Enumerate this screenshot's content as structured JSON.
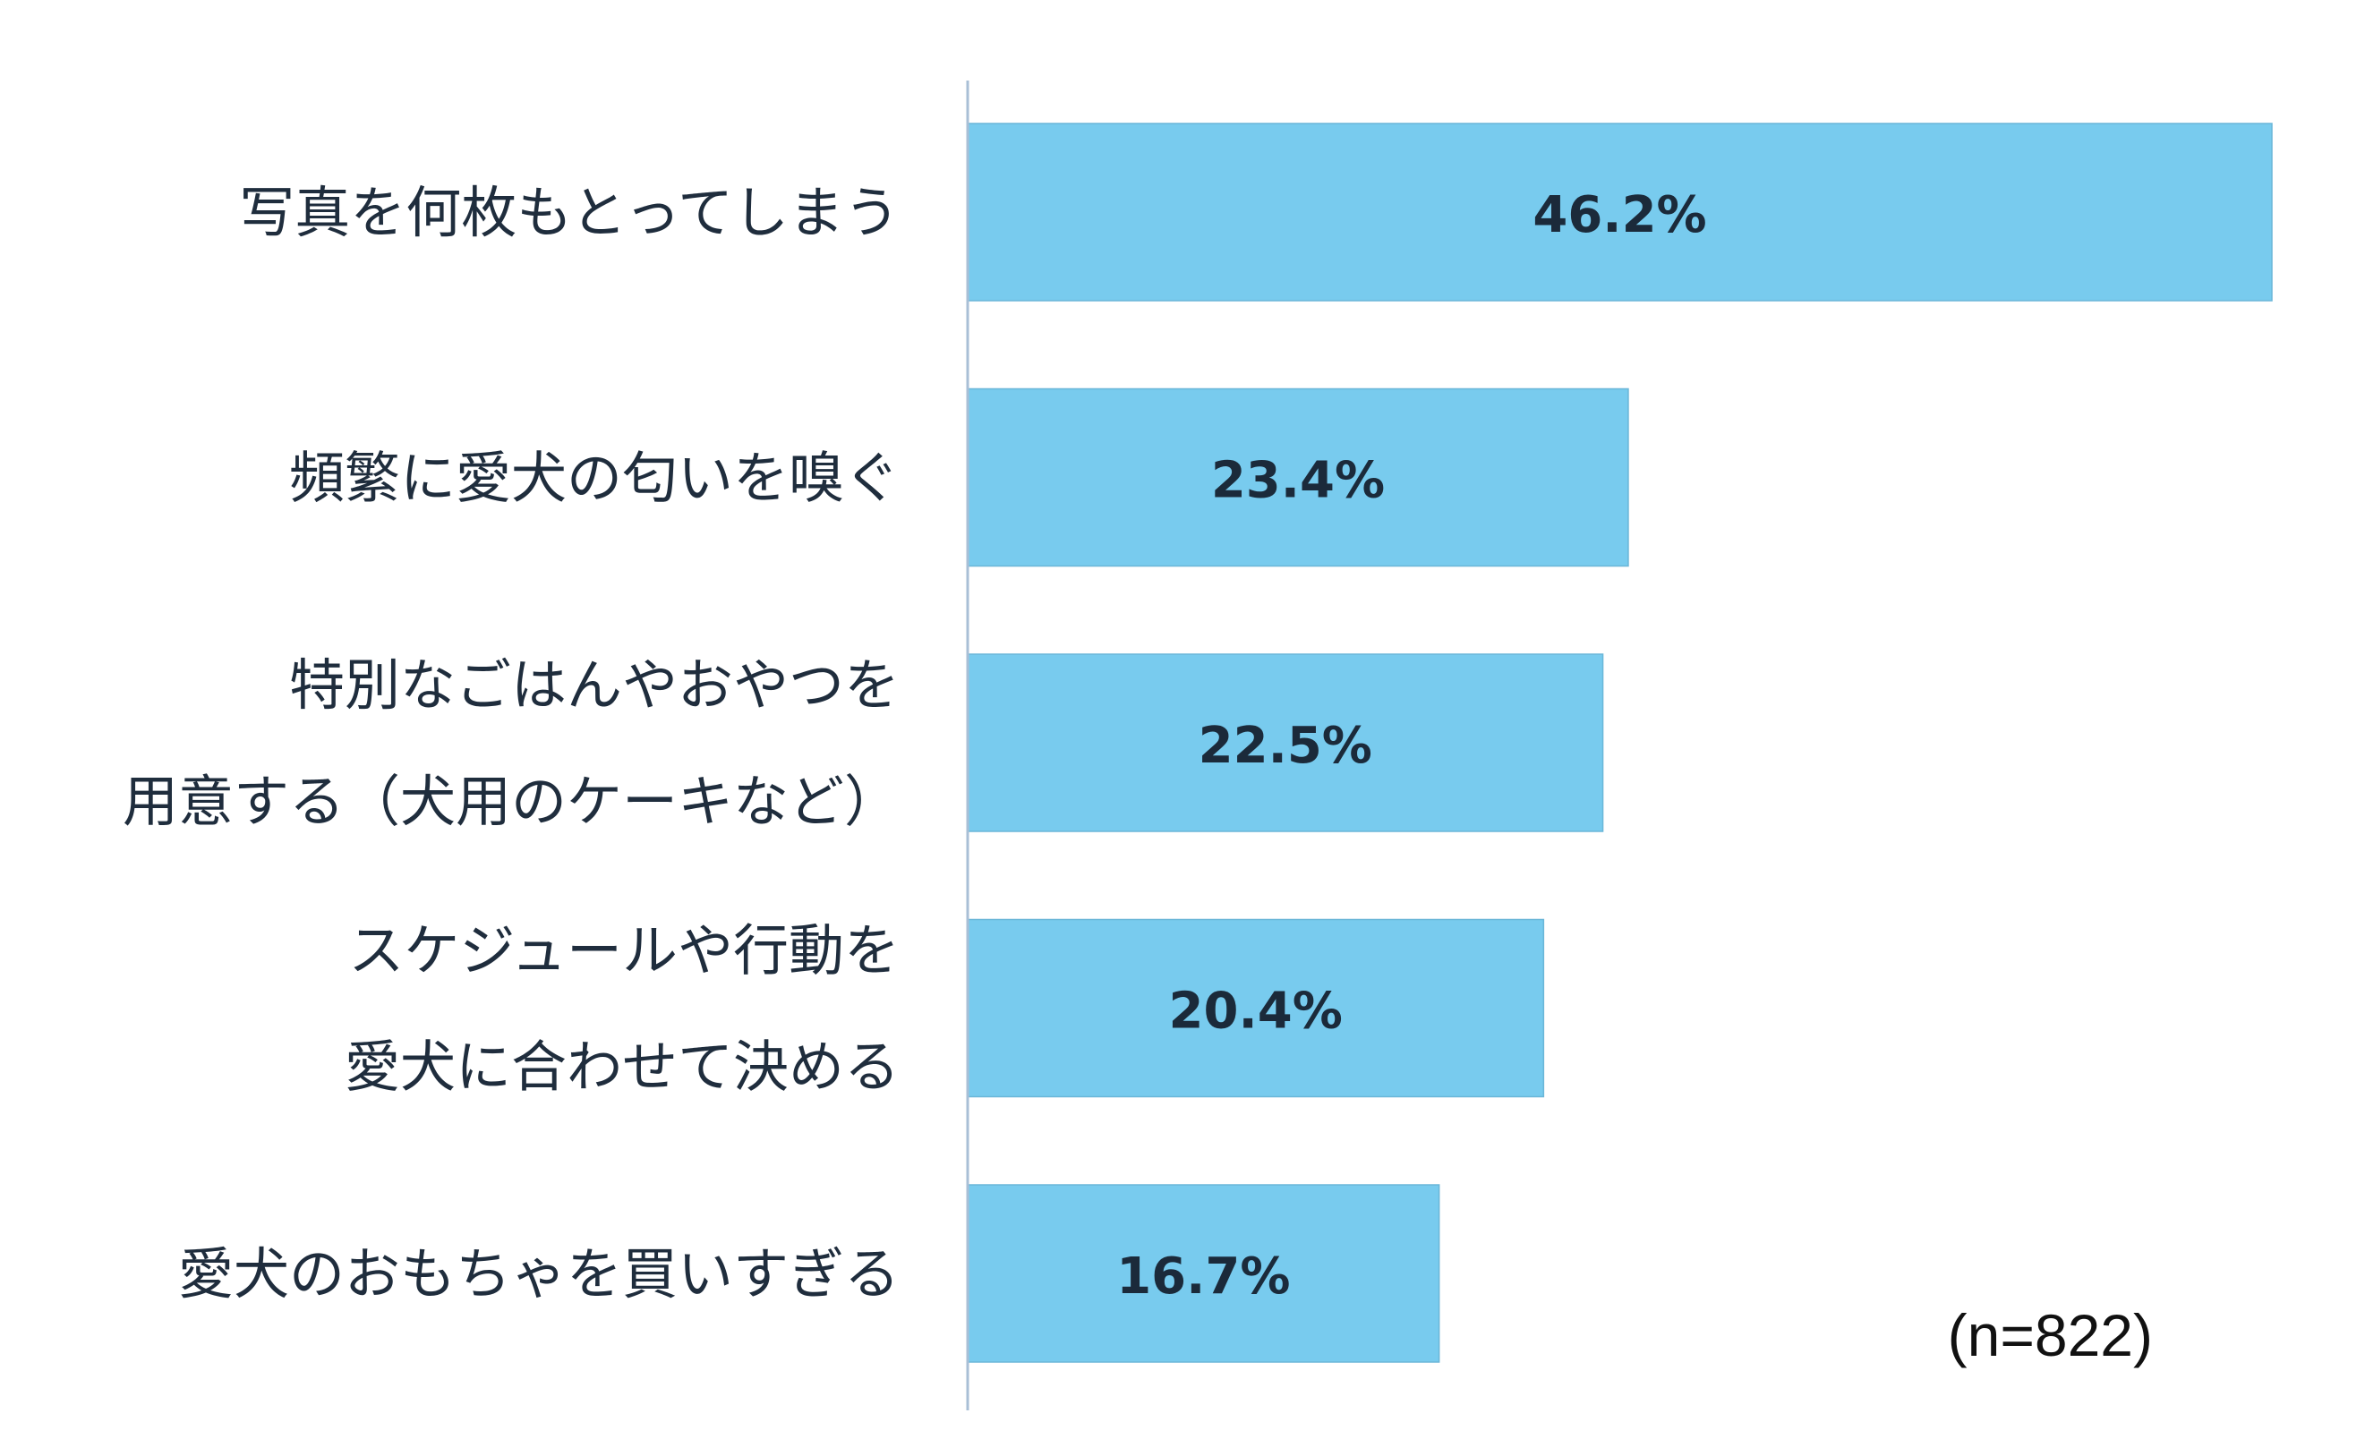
{
  "chart_data": {
    "type": "bar",
    "orientation": "horizontal",
    "categories": [
      [
        "写真を何枚もとってしまう"
      ],
      [
        "頻繁に愛犬の匂いを嗅ぐ"
      ],
      [
        "特別なごはんやおやつを",
        "用意する（犬用のケーキなど）"
      ],
      [
        "スケジュールや行動を",
        "愛犬に合わせて決める"
      ],
      [
        "愛犬のおもちゃを買いすぎる"
      ]
    ],
    "values": [
      46.2,
      23.4,
      22.5,
      20.4,
      16.7
    ],
    "value_labels": [
      "46.2%",
      "23.4%",
      "22.5%",
      "20.4%",
      "16.7%"
    ],
    "xlim": [
      0,
      50
    ],
    "bar_color": "#78cbee",
    "axis_color": "#a9bfd6",
    "grid": false,
    "legend": "none",
    "note": "(n=822)"
  }
}
